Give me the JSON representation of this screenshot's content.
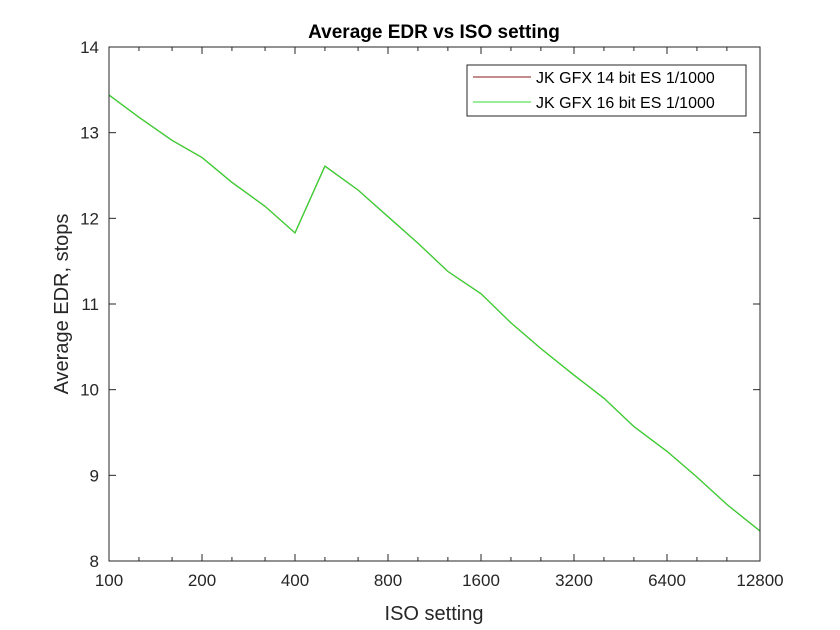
{
  "chart_data": {
    "type": "line",
    "title": "Average EDR vs ISO setting",
    "xlabel": "ISO setting",
    "ylabel": "Average EDR, stops",
    "x_scale": "log2",
    "xlim": [
      100,
      12800
    ],
    "ylim": [
      8,
      14
    ],
    "x_ticks": [
      100,
      200,
      400,
      800,
      1600,
      3200,
      6400,
      12800
    ],
    "x_tick_labels": [
      "100",
      "200",
      "400",
      "800",
      "1600",
      "3200",
      "6400",
      "12800"
    ],
    "y_ticks": [
      8,
      9,
      10,
      11,
      12,
      13,
      14
    ],
    "y_tick_labels": [
      "8",
      "9",
      "10",
      "11",
      "12",
      "13",
      "14"
    ],
    "x_minor_ticks": [
      125,
      160,
      250,
      320,
      500,
      640,
      1000,
      1250,
      2000,
      2500,
      4000,
      5000,
      8000,
      10000
    ],
    "grid": false,
    "legend_position": "top-right",
    "x": [
      100,
      125,
      160,
      200,
      250,
      320,
      400,
      500,
      640,
      800,
      1000,
      1250,
      1600,
      2000,
      2500,
      3200,
      4000,
      5000,
      6400,
      8000,
      10000,
      12800
    ],
    "series": [
      {
        "name": "JK GFX 14 bit ES 1/1000",
        "color": "#8b1a1a",
        "values": [
          13.44,
          13.18,
          12.91,
          12.71,
          12.42,
          12.14,
          11.83,
          12.61,
          12.33,
          12.02,
          11.71,
          11.38,
          11.12,
          10.78,
          10.48,
          10.17,
          9.9,
          9.57,
          9.28,
          8.98,
          8.66,
          8.35
        ]
      },
      {
        "name": "JK GFX 16 bit ES 1/1000",
        "color": "#33dd33",
        "values": [
          13.44,
          13.18,
          12.91,
          12.71,
          12.42,
          12.14,
          11.83,
          12.61,
          12.33,
          12.02,
          11.71,
          11.38,
          11.12,
          10.78,
          10.48,
          10.17,
          9.9,
          9.57,
          9.28,
          8.98,
          8.66,
          8.35
        ]
      }
    ]
  }
}
